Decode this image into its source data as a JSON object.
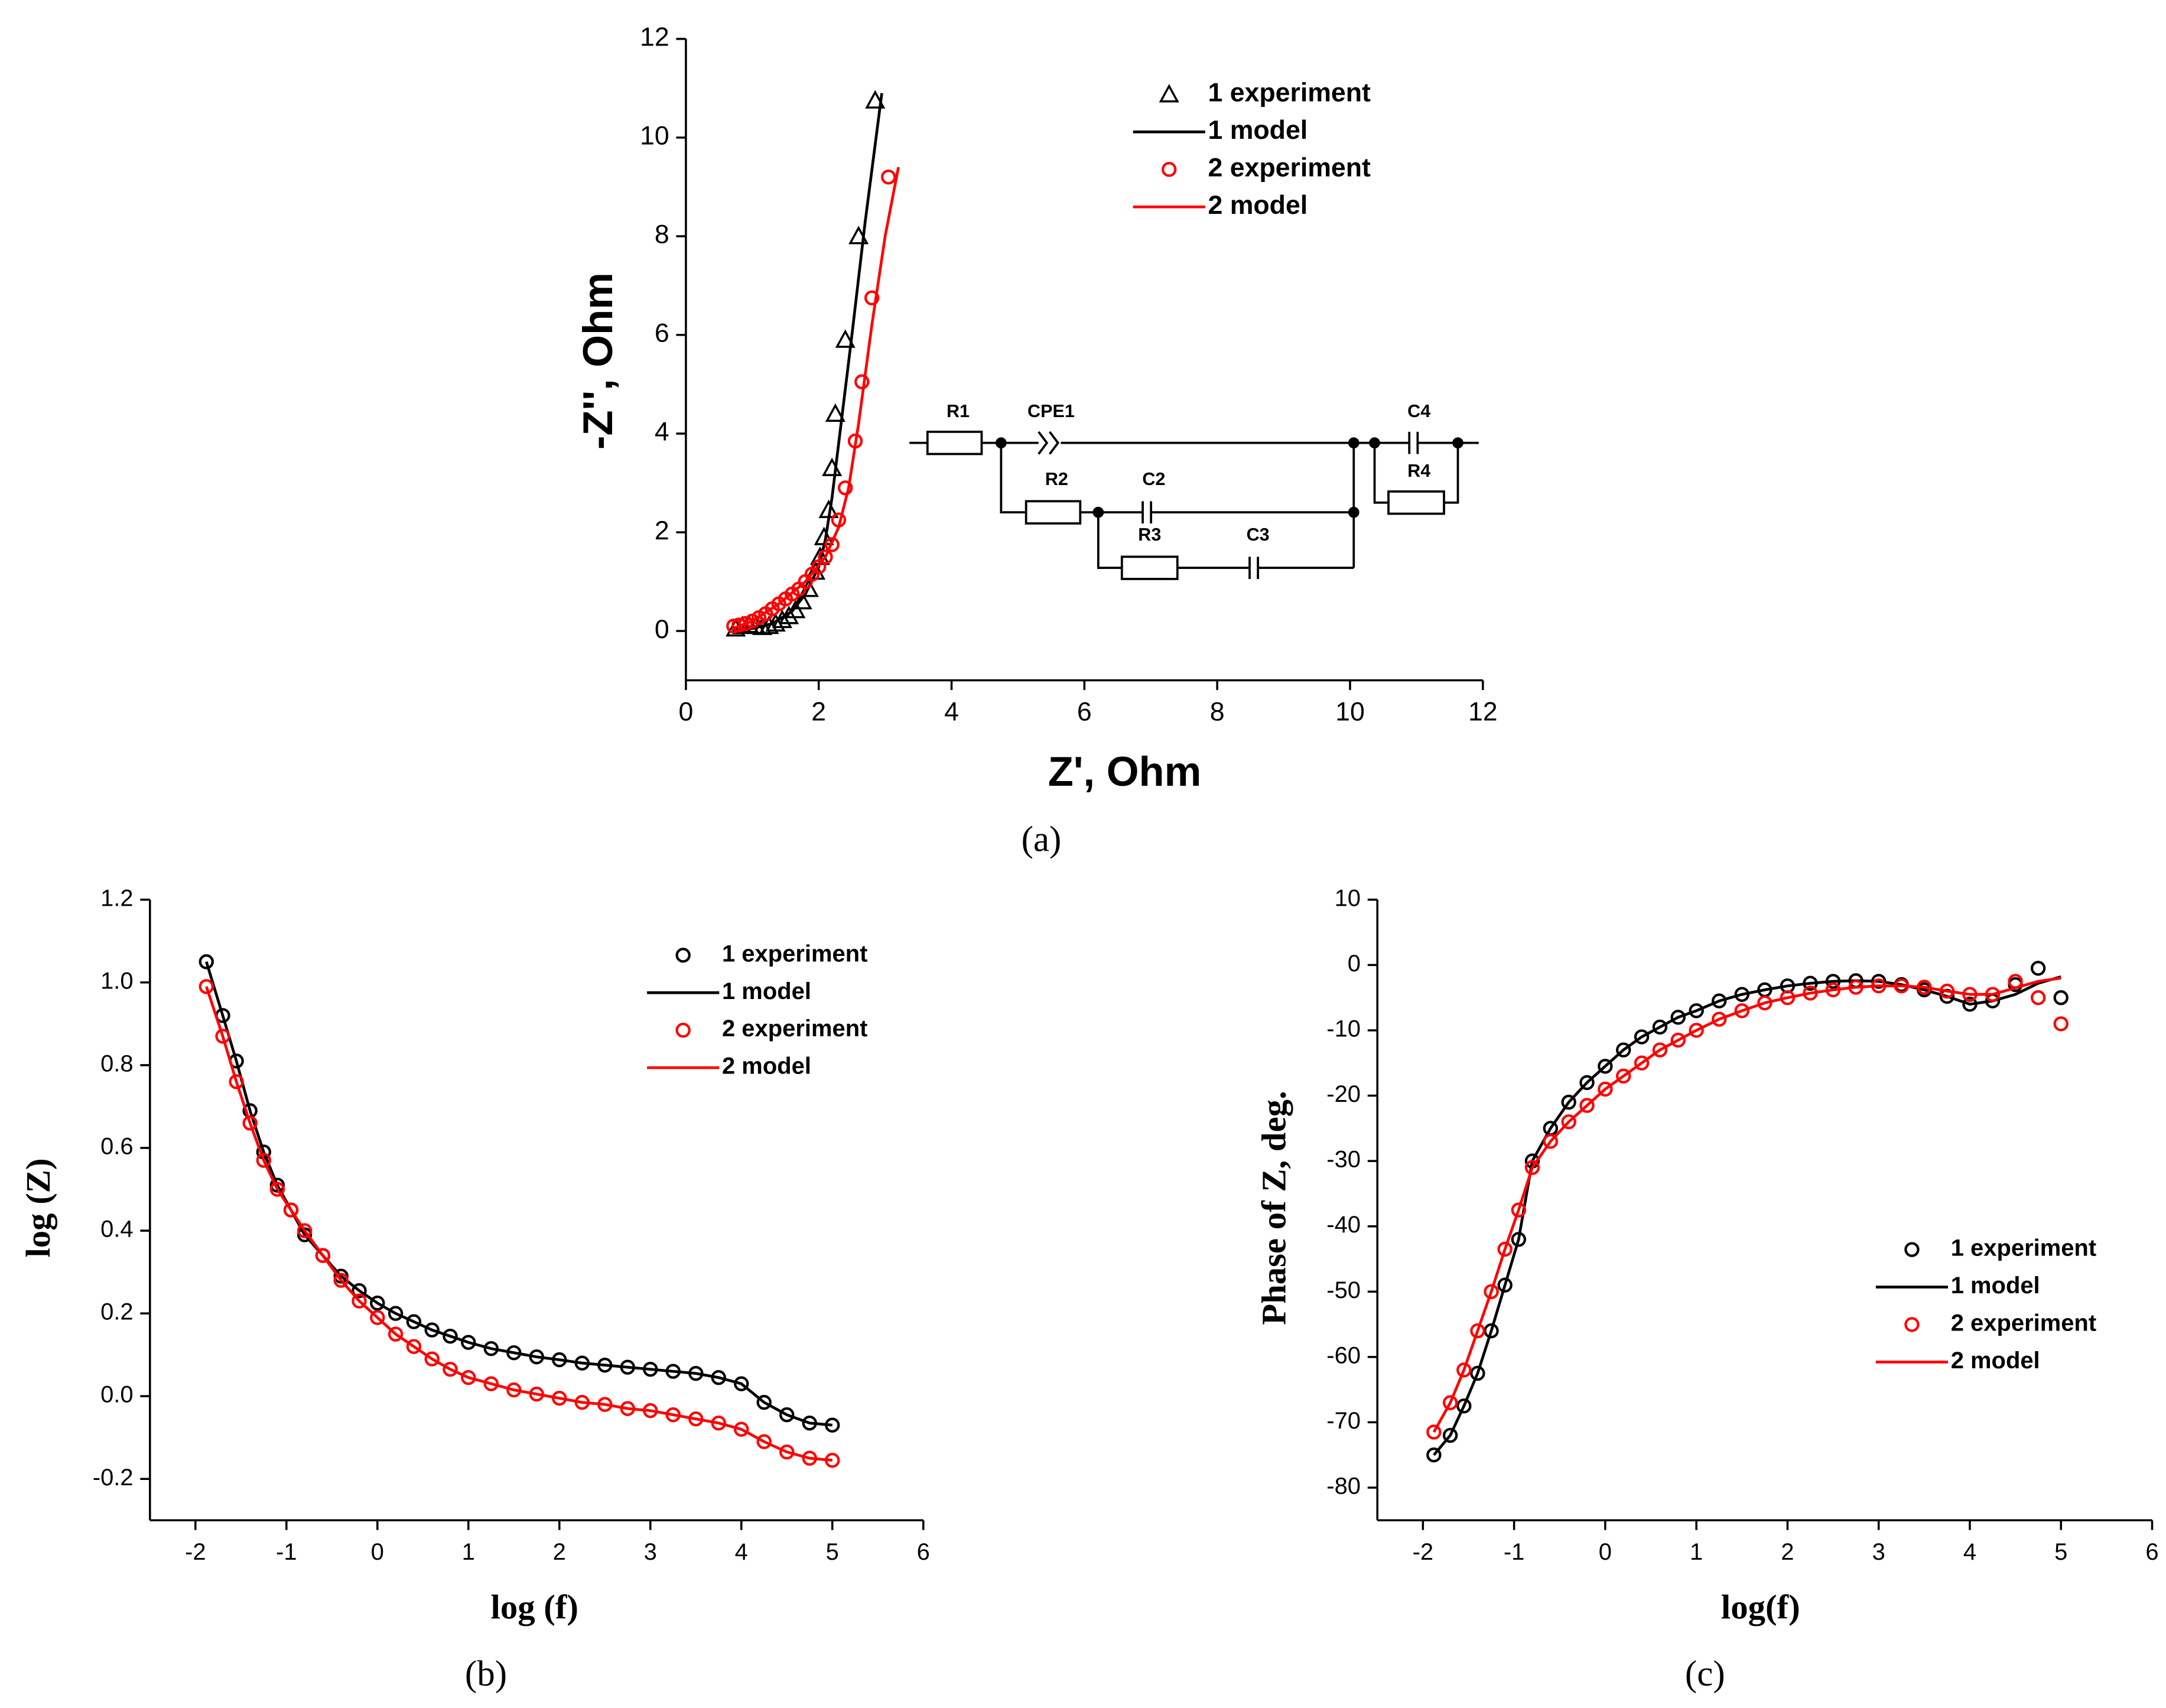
{
  "chart_data": [
    {
      "type": "scatter",
      "caption": "(a)",
      "x_label": "Z', Ohm",
      "y_label": "-Z'', Ohm",
      "xlim": [
        0,
        12
      ],
      "ylim": [
        -1,
        12
      ],
      "xticks": [
        0,
        2,
        4,
        6,
        8,
        10,
        12
      ],
      "yticks": [
        0,
        2,
        4,
        6,
        8,
        10,
        12
      ],
      "legend": "upper right",
      "circuit_labels": [
        "R1",
        "CPE1",
        "R2",
        "C2",
        "R3",
        "C3",
        "C4",
        "R4"
      ],
      "series": [
        {
          "name": "1 experiment",
          "color": "#000000",
          "marker": "triangle",
          "x": [
            0.75,
            0.85,
            0.95,
            1.05,
            1.15,
            1.25,
            1.35,
            1.45,
            1.55,
            1.65,
            1.75,
            1.85,
            1.95,
            2.02,
            2.08,
            2.15,
            2.2,
            2.25,
            2.4,
            2.6,
            2.85
          ],
          "values": [
            0.05,
            0.1,
            0.12,
            0.1,
            0.08,
            0.1,
            0.15,
            0.22,
            0.3,
            0.42,
            0.6,
            0.85,
            1.2,
            1.5,
            1.9,
            2.45,
            3.3,
            4.4,
            5.9,
            8.0,
            10.75
          ]
        },
        {
          "name": "1 model",
          "color": "#000000",
          "marker": "line",
          "x": [
            0.7,
            1.0,
            1.3,
            1.6,
            1.8,
            2.0,
            2.1,
            2.2,
            2.3,
            2.5,
            2.7,
            2.95
          ],
          "values": [
            0.02,
            0.05,
            0.15,
            0.4,
            0.75,
            1.3,
            1.85,
            2.7,
            3.8,
            6.0,
            8.3,
            10.9
          ]
        },
        {
          "name": "2 experiment",
          "color": "#ff0000",
          "marker": "circle",
          "x": [
            0.72,
            0.8,
            0.9,
            1.0,
            1.1,
            1.2,
            1.3,
            1.4,
            1.5,
            1.6,
            1.7,
            1.8,
            1.9,
            2.0,
            2.1,
            2.2,
            2.3,
            2.4,
            2.55,
            2.65,
            2.8,
            3.05
          ],
          "values": [
            0.1,
            0.12,
            0.15,
            0.2,
            0.27,
            0.35,
            0.45,
            0.55,
            0.65,
            0.75,
            0.85,
            1.0,
            1.15,
            1.3,
            1.5,
            1.75,
            2.25,
            2.9,
            3.85,
            5.05,
            6.75,
            9.2
          ]
        },
        {
          "name": "2 model",
          "color": "#ff0000",
          "marker": "line",
          "x": [
            0.7,
            1.0,
            1.4,
            1.8,
            2.1,
            2.3,
            2.45,
            2.6,
            2.8,
            3.0,
            3.2
          ],
          "values": [
            0.05,
            0.2,
            0.55,
            1.0,
            1.5,
            2.1,
            2.9,
            4.2,
            6.2,
            8.0,
            9.4
          ]
        }
      ]
    },
    {
      "type": "scatter",
      "caption": "(b)",
      "x_label": "log (f)",
      "y_label": "log (Z)",
      "xlim": [
        -2.5,
        6
      ],
      "ylim": [
        -0.3,
        1.2
      ],
      "xticks": [
        -2,
        -1,
        0,
        1,
        2,
        3,
        4,
        5,
        6
      ],
      "yticks": [
        -0.2,
        {
          "value": 0,
          "label": "0.0"
        },
        0.2,
        0.4,
        0.6,
        0.8,
        {
          "value": 1,
          "label": "1.0"
        },
        1.2
      ],
      "legend": "upper right",
      "x": [
        -1.88,
        -1.7,
        -1.55,
        -1.4,
        -1.25,
        -1.1,
        -0.95,
        -0.8,
        -0.6,
        -0.4,
        -0.2,
        0,
        0.2,
        0.4,
        0.6,
        0.8,
        1.0,
        1.25,
        1.5,
        1.75,
        2.0,
        2.25,
        2.5,
        2.75,
        3.0,
        3.25,
        3.5,
        3.75,
        4.0,
        4.25,
        4.5,
        4.75,
        5.0
      ],
      "series": [
        {
          "name": "1 experiment",
          "color": "#000000",
          "marker": "circle",
          "values": [
            1.05,
            0.92,
            0.81,
            0.69,
            0.59,
            0.51,
            0.45,
            0.39,
            0.34,
            0.29,
            0.255,
            0.225,
            0.2,
            0.18,
            0.16,
            0.145,
            0.13,
            0.115,
            0.105,
            0.095,
            0.088,
            0.08,
            0.075,
            0.07,
            0.065,
            0.06,
            0.055,
            0.045,
            0.03,
            -0.015,
            -0.045,
            -0.065,
            -0.07
          ]
        },
        {
          "name": "1 model",
          "color": "#000000",
          "marker": "line",
          "values": [
            1.05,
            0.92,
            0.81,
            0.69,
            0.59,
            0.51,
            0.45,
            0.39,
            0.34,
            0.29,
            0.255,
            0.225,
            0.2,
            0.18,
            0.16,
            0.145,
            0.13,
            0.115,
            0.105,
            0.095,
            0.088,
            0.08,
            0.075,
            0.07,
            0.065,
            0.06,
            0.055,
            0.045,
            0.03,
            -0.015,
            -0.045,
            -0.065,
            -0.07
          ]
        },
        {
          "name": "2 experiment",
          "color": "#ff0000",
          "marker": "circle",
          "values": [
            0.99,
            0.87,
            0.76,
            0.66,
            0.57,
            0.5,
            0.45,
            0.4,
            0.34,
            0.28,
            0.23,
            0.19,
            0.15,
            0.12,
            0.09,
            0.065,
            0.045,
            0.03,
            0.015,
            0.005,
            -0.005,
            -0.015,
            -0.02,
            -0.03,
            -0.035,
            -0.045,
            -0.055,
            -0.065,
            -0.08,
            -0.11,
            -0.135,
            -0.15,
            -0.155
          ]
        },
        {
          "name": "2 model",
          "color": "#ff0000",
          "marker": "line",
          "values": [
            0.99,
            0.87,
            0.76,
            0.66,
            0.57,
            0.5,
            0.45,
            0.4,
            0.34,
            0.28,
            0.23,
            0.19,
            0.15,
            0.12,
            0.09,
            0.065,
            0.045,
            0.03,
            0.015,
            0.005,
            -0.005,
            -0.015,
            -0.02,
            -0.03,
            -0.035,
            -0.045,
            -0.055,
            -0.065,
            -0.08,
            -0.11,
            -0.135,
            -0.15,
            -0.155
          ]
        }
      ]
    },
    {
      "type": "scatter",
      "caption": "(c)",
      "x_label": "log(f)",
      "y_label": "Phase of Z, deg.",
      "xlim": [
        -2.5,
        6
      ],
      "ylim": [
        -85,
        10
      ],
      "xticks": [
        -2,
        -1,
        0,
        1,
        2,
        3,
        4,
        5,
        6
      ],
      "yticks": [
        -80,
        -70,
        -60,
        -50,
        -40,
        -30,
        -20,
        -10,
        0,
        10
      ],
      "legend": "lower right",
      "x": [
        -1.88,
        -1.7,
        -1.55,
        -1.4,
        -1.25,
        -1.1,
        -0.95,
        -0.8,
        -0.6,
        -0.4,
        -0.2,
        0,
        0.2,
        0.4,
        0.6,
        0.8,
        1.0,
        1.25,
        1.5,
        1.75,
        2.0,
        2.25,
        2.5,
        2.75,
        3.0,
        3.25,
        3.5,
        3.75,
        4.0,
        4.25,
        4.5,
        4.75,
        5.0
      ],
      "series": [
        {
          "name": "1 experiment",
          "color": "#000000",
          "marker": "circle",
          "values": [
            -75,
            -72,
            -67.5,
            -62.5,
            -56,
            -49,
            -42,
            -30,
            -25,
            -21,
            -18,
            -15.5,
            -13,
            -11,
            -9.5,
            -8,
            -7,
            -5.5,
            -4.5,
            -3.8,
            -3.2,
            -2.8,
            -2.5,
            -2.4,
            -2.5,
            -3,
            -3.8,
            -4.8,
            -6,
            -5.5,
            -3,
            -0.5,
            -5
          ]
        },
        {
          "name": "1 model",
          "color": "#000000",
          "marker": "line",
          "values": [
            -75,
            -72,
            -67.5,
            -62.5,
            -56,
            -49,
            -42,
            -30,
            -25,
            -21,
            -18,
            -15.5,
            -13,
            -11,
            -9.5,
            -8,
            -7,
            -5.5,
            -4.5,
            -3.8,
            -3.2,
            -2.8,
            -2.5,
            -2.4,
            -2.5,
            -3,
            -3.8,
            -4.8,
            -6,
            -5.5,
            -4.5,
            -2.8,
            -1.8
          ]
        },
        {
          "name": "2 experiment",
          "color": "#ff0000",
          "marker": "circle",
          "values": [
            -71.5,
            -67,
            -62,
            -56,
            -50,
            -43.5,
            -37.5,
            -31,
            -27,
            -24,
            -21.5,
            -19,
            -17,
            -15,
            -13,
            -11.5,
            -10,
            -8.3,
            -7,
            -5.8,
            -5,
            -4.3,
            -3.8,
            -3.4,
            -3.2,
            -3.2,
            -3.4,
            -4,
            -4.5,
            -4.5,
            -2.5,
            -5,
            -9
          ]
        },
        {
          "name": "2 model",
          "color": "#ff0000",
          "marker": "line",
          "values": [
            -71.5,
            -67,
            -62,
            -56,
            -50,
            -43.5,
            -37.5,
            -31,
            -27,
            -24,
            -21.5,
            -19,
            -17,
            -15,
            -13,
            -11.5,
            -10,
            -8.3,
            -7,
            -5.8,
            -5,
            -4.3,
            -3.8,
            -3.4,
            -3.2,
            -3.2,
            -3.4,
            -4,
            -4.5,
            -4.5,
            -3.5,
            -2.5,
            -2
          ]
        }
      ]
    }
  ]
}
